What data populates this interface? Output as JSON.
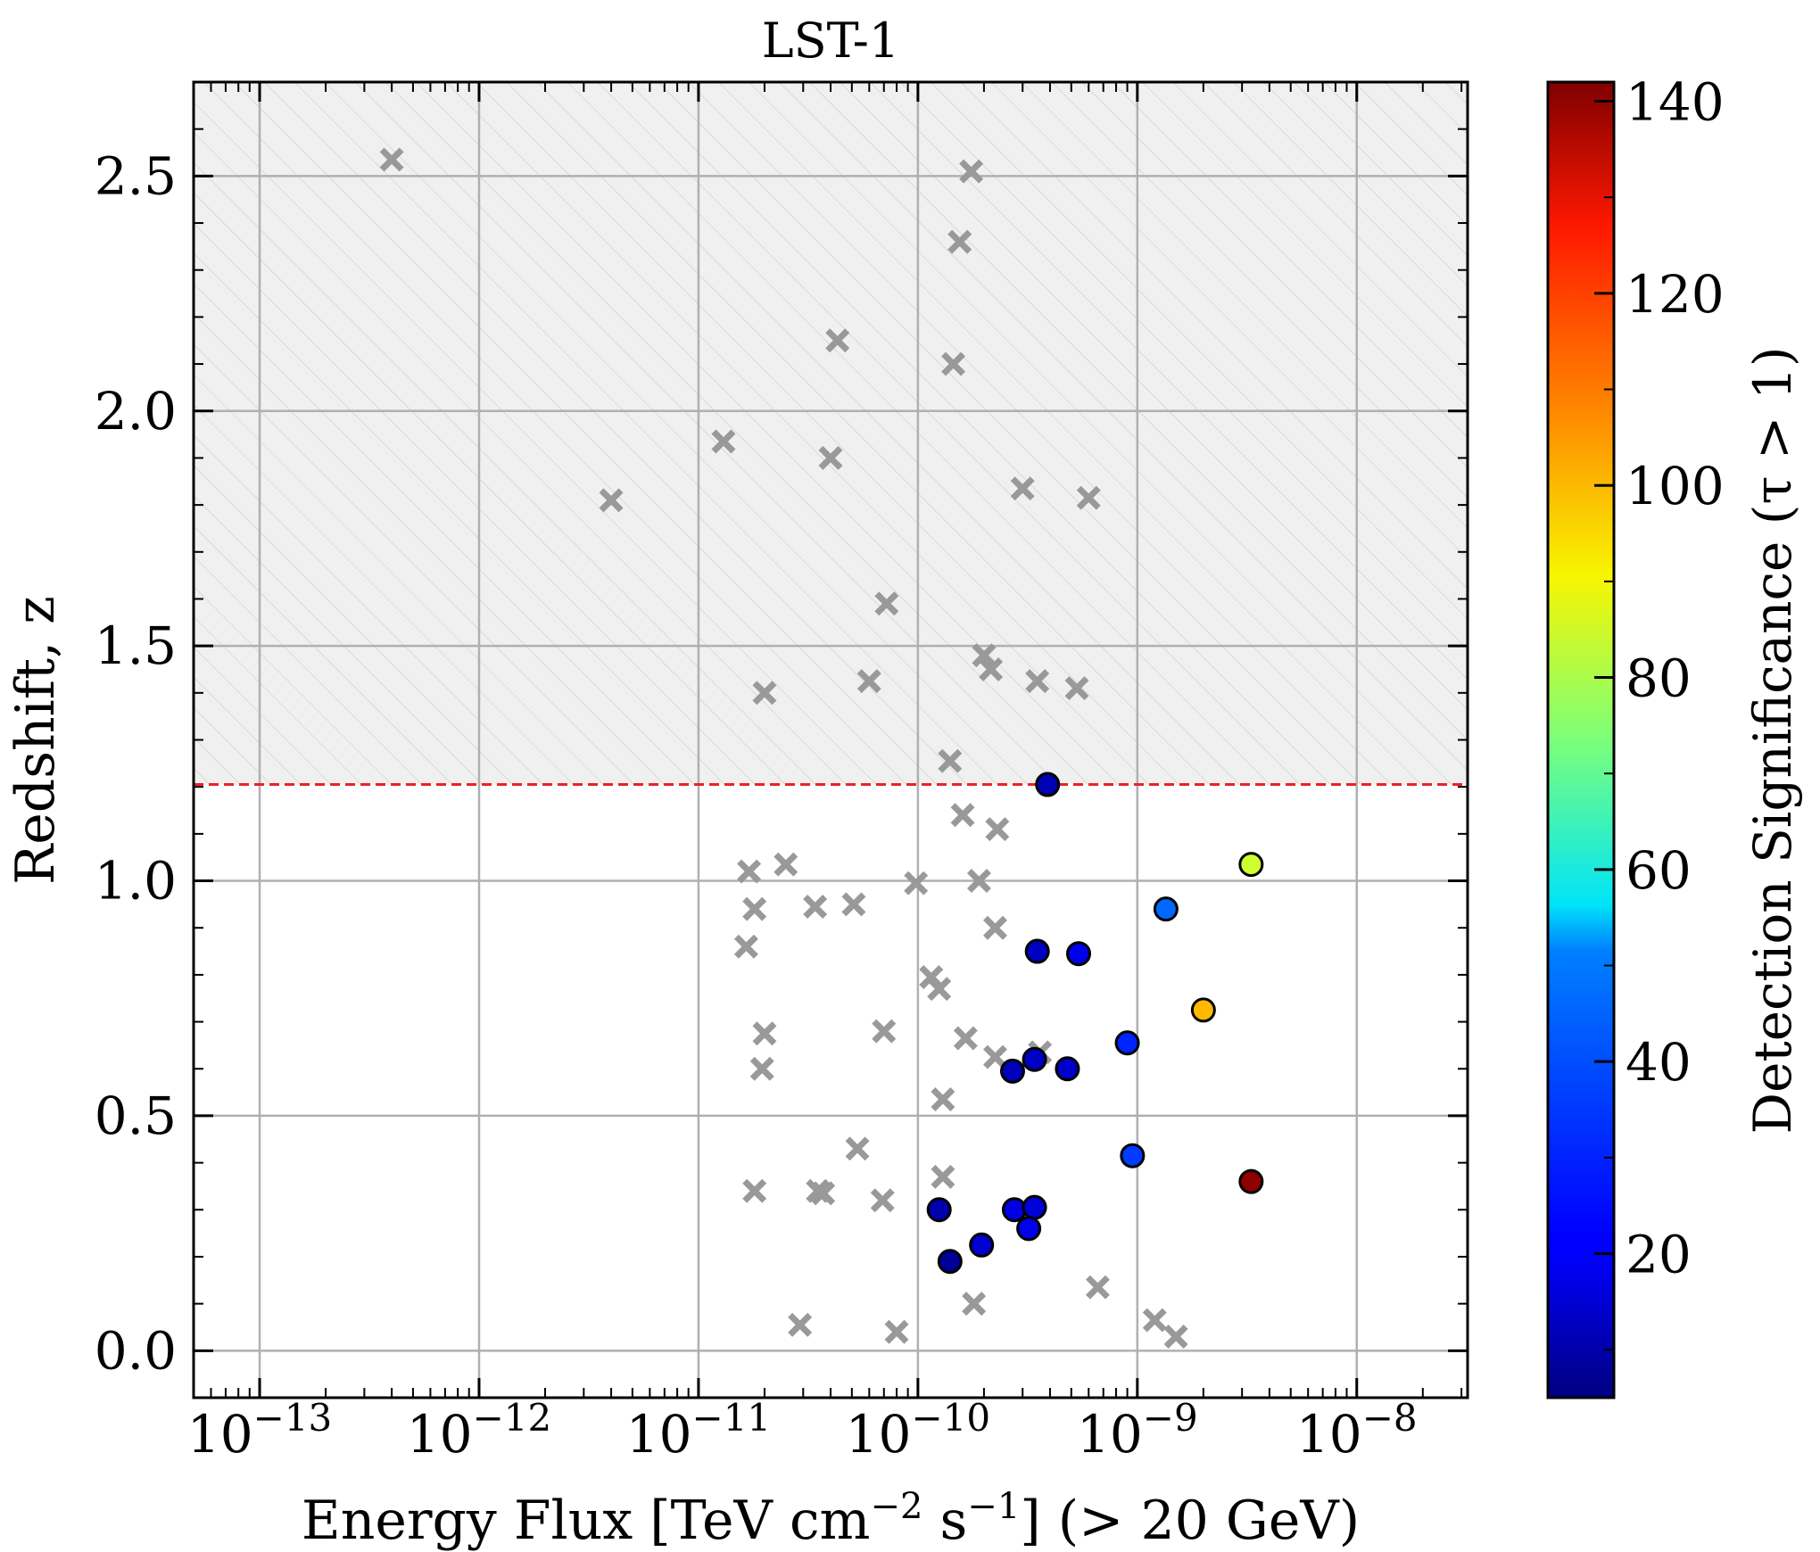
{
  "chart_data": {
    "type": "scatter",
    "title": "LST-1",
    "xlabel": "Energy Flux [TeV cm$^{-2}$ s$^{-1}$] (> 20 GeV)",
    "xlabel_parts": [
      "Energy Flux [TeV cm",
      "−2",
      " s",
      "−1",
      "] (> 20 GeV)"
    ],
    "ylabel": "Redshift, z",
    "xscale": "log",
    "xlim": [
      5e-14,
      3.2e-08
    ],
    "ylim": [
      -0.1,
      2.7
    ],
    "x_tick_exponents": [
      -13,
      -12,
      -11,
      -10,
      -9,
      -8
    ],
    "x_tick_base": "10",
    "x_tick_labels": [
      "10^-13",
      "10^-12",
      "10^-11",
      "10^-10",
      "10^-9",
      "10^-8"
    ],
    "y_ticks": [
      0.0,
      0.5,
      1.0,
      1.5,
      2.0,
      2.5
    ],
    "y_tick_labels": [
      "0.0",
      "0.5",
      "1.0",
      "1.5",
      "2.0",
      "2.5"
    ],
    "grid": true,
    "threshold_line": {
      "y": 1.205,
      "style": "dashed",
      "color": "#e8232a"
    },
    "shaded_region": {
      "from_y": 1.205,
      "to_y": 2.7,
      "fill": "#f0f0f0",
      "hatch": "diagonal"
    },
    "colorbar": {
      "label": "Detection Significance (τ > 1)",
      "colormap": "jet",
      "range": [
        5,
        142
      ],
      "ticks": [
        20,
        40,
        60,
        80,
        100,
        120,
        140
      ],
      "tick_labels": [
        "20",
        "40",
        "60",
        "80",
        "100",
        "120",
        "140"
      ]
    },
    "series": [
      {
        "marker": "x",
        "color": "#999999",
        "points": [
          [
            4e-13,
            2.535
          ],
          [
            4e-12,
            1.81
          ],
          [
            1.3e-11,
            1.935
          ],
          [
            4.3e-11,
            2.15
          ],
          [
            4e-11,
            1.9
          ],
          [
            7.2e-11,
            1.59
          ],
          [
            1.75e-10,
            2.51
          ],
          [
            1.55e-10,
            2.36
          ],
          [
            1.45e-10,
            2.1
          ],
          [
            3e-10,
            1.835
          ],
          [
            6e-10,
            1.815
          ],
          [
            2e-10,
            1.48
          ],
          [
            2.15e-10,
            1.45
          ],
          [
            2e-11,
            1.4
          ],
          [
            6e-11,
            1.425
          ],
          [
            3.5e-10,
            1.425
          ],
          [
            5.3e-10,
            1.41
          ],
          [
            1.4e-10,
            1.255
          ],
          [
            1.6e-10,
            1.14
          ],
          [
            2.3e-10,
            1.11
          ],
          [
            1.7e-11,
            1.02
          ],
          [
            2.5e-11,
            1.035
          ],
          [
            1.8e-11,
            0.94
          ],
          [
            3.4e-11,
            0.945
          ],
          [
            5.1e-11,
            0.95
          ],
          [
            9.8e-11,
            0.995
          ],
          [
            1.9e-10,
            1.0
          ],
          [
            2.25e-10,
            0.9
          ],
          [
            1.65e-11,
            0.86
          ],
          [
            1.15e-10,
            0.795
          ],
          [
            1.25e-10,
            0.77
          ],
          [
            2e-11,
            0.675
          ],
          [
            7e-11,
            0.68
          ],
          [
            1.65e-10,
            0.665
          ],
          [
            2.25e-10,
            0.625
          ],
          [
            3.6e-10,
            0.635
          ],
          [
            1.95e-11,
            0.6
          ],
          [
            1.3e-10,
            0.535
          ],
          [
            5.3e-11,
            0.43
          ],
          [
            1.8e-11,
            0.34
          ],
          [
            3.5e-11,
            0.34
          ],
          [
            3.7e-11,
            0.335
          ],
          [
            6.9e-11,
            0.32
          ],
          [
            1.3e-10,
            0.37
          ],
          [
            6.6e-10,
            0.135
          ],
          [
            1.2e-09,
            0.065
          ],
          [
            1.5e-09,
            0.03
          ],
          [
            2.9e-11,
            0.055
          ],
          [
            8e-11,
            0.04
          ],
          [
            1.8e-10,
            0.1
          ]
        ]
      },
      {
        "marker": "o",
        "color_by": "significance",
        "points": [
          [
            3.9e-10,
            1.205,
            12
          ],
          [
            3.5e-10,
            0.85,
            14
          ],
          [
            5.4e-10,
            0.845,
            19
          ],
          [
            1.35e-09,
            0.94,
            36
          ],
          [
            3.3e-09,
            1.035,
            84
          ],
          [
            2e-09,
            0.725,
            100
          ],
          [
            9e-10,
            0.655,
            27
          ],
          [
            3.4e-10,
            0.62,
            14
          ],
          [
            2.7e-10,
            0.595,
            13
          ],
          [
            4.8e-10,
            0.6,
            15
          ],
          [
            9.5e-10,
            0.415,
            30
          ],
          [
            3.3e-09,
            0.36,
            140
          ],
          [
            1.25e-10,
            0.3,
            11
          ],
          [
            2.75e-10,
            0.3,
            18
          ],
          [
            3.4e-10,
            0.305,
            17
          ],
          [
            3.2e-10,
            0.26,
            20
          ],
          [
            1.4e-10,
            0.19,
            8
          ],
          [
            1.95e-10,
            0.225,
            16
          ]
        ]
      }
    ]
  }
}
